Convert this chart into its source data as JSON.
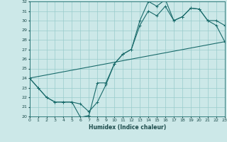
{
  "xlabel": "Humidex (Indice chaleur)",
  "background_color": "#cce8e8",
  "grid_color": "#99cccc",
  "line_color": "#1a6b6b",
  "xmin": 0,
  "xmax": 23,
  "ymin": 20,
  "ymax": 32,
  "line1_x": [
    0,
    1,
    2,
    3,
    4,
    5,
    6,
    7,
    8,
    9,
    10,
    11,
    12,
    13,
    14,
    15,
    16,
    17,
    18,
    19,
    20,
    21,
    22,
    23
  ],
  "line1_y": [
    24.0,
    23.0,
    22.0,
    21.5,
    21.5,
    21.5,
    19.9,
    20.1,
    23.5,
    23.5,
    25.5,
    26.5,
    27.0,
    30.0,
    32.0,
    31.5,
    32.2,
    30.0,
    30.4,
    31.3,
    31.2,
    30.0,
    30.0,
    29.5
  ],
  "line2_x": [
    0,
    1,
    2,
    3,
    4,
    5,
    6,
    7,
    8,
    9,
    10,
    11,
    12,
    13,
    14,
    15,
    16,
    17,
    18,
    19,
    20,
    21,
    22,
    23
  ],
  "line2_y": [
    24.0,
    23.0,
    22.0,
    21.5,
    21.5,
    21.5,
    21.3,
    20.5,
    21.5,
    23.3,
    25.5,
    26.5,
    27.0,
    29.5,
    31.0,
    30.5,
    31.5,
    30.0,
    30.4,
    31.3,
    31.2,
    30.0,
    29.5,
    27.8
  ],
  "line3_x": [
    0,
    23
  ],
  "line3_y": [
    24.0,
    27.8
  ]
}
